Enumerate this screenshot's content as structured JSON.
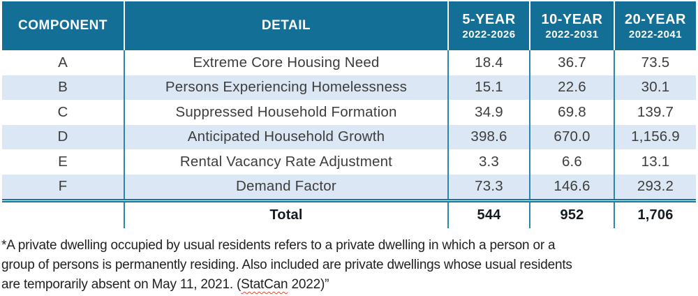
{
  "table": {
    "header": {
      "component": "COMPONENT",
      "detail": "DETAIL",
      "periods": [
        {
          "label": "5-YEAR",
          "range": "2022-2026"
        },
        {
          "label": "10-YEAR",
          "range": "2022-2031"
        },
        {
          "label": "20-YEAR",
          "range": "2022-2041"
        }
      ]
    },
    "rows": [
      {
        "component": "A",
        "detail": "Extreme Core Housing Need",
        "values": [
          "18.4",
          "36.7",
          "73.5"
        ]
      },
      {
        "component": "B",
        "detail": "Persons Experiencing Homelessness",
        "values": [
          "15.1",
          "22.6",
          "30.1"
        ]
      },
      {
        "component": "C",
        "detail": "Suppressed Household Formation",
        "values": [
          "34.9",
          "69.8",
          "139.7"
        ]
      },
      {
        "component": "D",
        "detail": "Anticipated Household Growth",
        "values": [
          "398.6",
          "670.0",
          "1,156.9"
        ]
      },
      {
        "component": "E",
        "detail": "Rental Vacancy Rate Adjustment",
        "values": [
          "3.3",
          "6.6",
          "13.1"
        ]
      },
      {
        "component": "F",
        "detail": "Demand Factor",
        "values": [
          "73.3",
          "146.6",
          "293.2"
        ]
      }
    ],
    "total": {
      "label": "Total",
      "values": [
        "544",
        "952",
        "1,706"
      ]
    }
  },
  "footnote": {
    "line1": "*A private dwelling occupied by usual residents refers to a private dwelling in which a person or a",
    "line2": "group of persons is permanently residing. Also included are private dwellings whose usual residents",
    "line3_pre": "are temporarily absent on May 11, 2021. (",
    "line3_statcan": "StatCan",
    "line3_post": " 2022)”"
  },
  "colors": {
    "header_bg": "#146f96",
    "header_text": "#ffffff",
    "row_stripe": "#dbe7f4",
    "grid_line": "#2a87ac",
    "double_rule": "#177499",
    "body_text": "#3d3d3d",
    "total_text": "#131a20",
    "footnote_text": "#212121",
    "spellcheck_underline": "#e8442e"
  },
  "chart_data": {
    "type": "table",
    "columns": [
      "COMPONENT",
      "DETAIL",
      "5-YEAR 2022-2026",
      "10-YEAR 2022-2031",
      "20-YEAR 2022-2041"
    ],
    "rows": [
      [
        "A",
        "Extreme Core Housing Need",
        18.4,
        36.7,
        73.5
      ],
      [
        "B",
        "Persons Experiencing Homelessness",
        15.1,
        22.6,
        30.1
      ],
      [
        "C",
        "Suppressed Household Formation",
        34.9,
        69.8,
        139.7
      ],
      [
        "D",
        "Anticipated Household Growth",
        398.6,
        670.0,
        1156.9
      ],
      [
        "E",
        "Rental Vacancy Rate Adjustment",
        3.3,
        6.6,
        13.1
      ],
      [
        "F",
        "Demand Factor",
        73.3,
        146.6,
        293.2
      ]
    ],
    "totals": [
      "",
      "Total",
      544,
      952,
      1706
    ]
  }
}
